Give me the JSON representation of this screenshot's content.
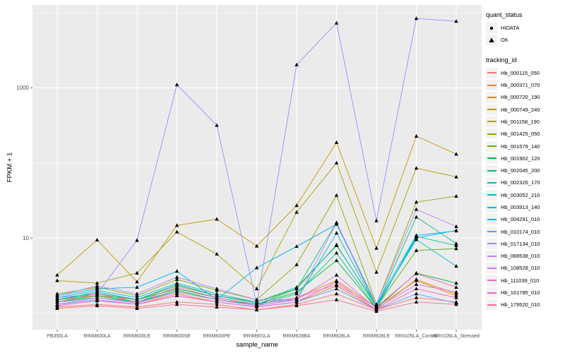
{
  "chart_data": {
    "type": "line",
    "title": "",
    "xlabel": "sample_name",
    "ylabel": "FPKM + 1",
    "y_scale": "log10",
    "y_axis_tick_labels": [
      "10",
      "1000"
    ],
    "y_major_gridlines": [
      10,
      1000
    ],
    "y_minor_gridlines": [
      1,
      100,
      10000
    ],
    "ylim": [
      0.93,
      13000
    ],
    "grid": "on",
    "panel_bg": "#EBEBEB",
    "gridline_color": "#FFFFFF",
    "tick_text_color": "#4D4D4D",
    "marker_color": "#000000",
    "legend_position": "right",
    "categories": [
      "PB350LA",
      "RRIM600LA",
      "RRIM600LE",
      "RRIM600SE",
      "RRIM600PE",
      "RRIM901LA",
      "RRIM928BA",
      "RRIM928LA",
      "RRIM928LE",
      "RRII105LA_Control",
      "RRII105LA_Stressed"
    ],
    "shape_legend": {
      "title": "quant_status",
      "items": [
        {
          "label": "HIDATA",
          "symbol": "circle"
        },
        {
          "label": "OK",
          "symbol": "triangle"
        }
      ]
    },
    "color_legend_title": "tracking_id",
    "series": [
      {
        "name": "Hb_000115_050",
        "color": "#F8766D",
        "quant_status": "OK",
        "values": [
          1.2,
          1.3,
          1.2,
          1.4,
          1.3,
          1.1,
          1.3,
          1.8,
          1.1,
          1.6,
          1.4
        ]
      },
      {
        "name": "Hb_000371_070",
        "color": "#EA8331",
        "quant_status": "OK",
        "values": [
          1.3,
          1.5,
          1.3,
          1.8,
          1.4,
          1.2,
          1.4,
          2.3,
          1.1,
          2.8,
          1.8
        ]
      },
      {
        "name": "Hb_000720_190",
        "color": "#D89000",
        "quant_status": "OK",
        "values": [
          1.5,
          1.7,
          1.5,
          2.1,
          1.6,
          1.3,
          1.6,
          2.7,
          1.2,
          2.7,
          1.7
        ]
      },
      {
        "name": "Hb_000749_240",
        "color": "#C49A00",
        "quant_status": "OK",
        "values": [
          3.2,
          9.4,
          2.6,
          14.7,
          17.8,
          7.8,
          27,
          187,
          7.3,
          227,
          131
        ]
      },
      {
        "name": "Hb_001158_190",
        "color": "#ABA300",
        "quant_status": "OK",
        "values": [
          2.7,
          2.5,
          3.4,
          12,
          6.1,
          2.1,
          22,
          100,
          3.5,
          85,
          65
        ]
      },
      {
        "name": "Hb_001425_050",
        "color": "#8CAB00",
        "quant_status": "OK",
        "values": [
          1.8,
          2.2,
          1.7,
          2.8,
          2.0,
          1.5,
          4.4,
          37,
          1.3,
          30,
          36
        ]
      },
      {
        "name": "Hb_001579_140",
        "color": "#5EB300",
        "quant_status": "OK",
        "values": [
          1.5,
          1.9,
          1.5,
          2.3,
          1.7,
          1.4,
          2.1,
          8.1,
          1.2,
          6.8,
          7.2
        ]
      },
      {
        "name": "Hb_001902_120",
        "color": "#00BA38",
        "quant_status": "OK",
        "values": [
          1.4,
          1.7,
          1.4,
          2.0,
          1.5,
          1.3,
          1.9,
          5.0,
          1.15,
          3.4,
          2.5
        ]
      },
      {
        "name": "Hb_002045_200",
        "color": "#00BF74",
        "quant_status": "OK",
        "values": [
          1.5,
          1.8,
          1.5,
          2.1,
          1.6,
          1.3,
          2.1,
          16,
          1.2,
          19,
          8.4
        ]
      },
      {
        "name": "Hb_002326_170",
        "color": "#00C19F",
        "quant_status": "OK",
        "values": [
          1.4,
          1.6,
          1.4,
          1.9,
          1.5,
          1.25,
          1.8,
          6.3,
          1.15,
          10.5,
          7.9
        ]
      },
      {
        "name": "Hb_003052_210",
        "color": "#00BFC4",
        "quant_status": "OK",
        "values": [
          1.6,
          2.0,
          1.6,
          2.5,
          1.8,
          1.4,
          2.2,
          7.9,
          1.25,
          9.5,
          4.2
        ]
      },
      {
        "name": "Hb_003913_140",
        "color": "#00BAE0",
        "quant_status": "OK",
        "values": [
          1.5,
          1.9,
          1.5,
          2.4,
          1.7,
          1.35,
          1.5,
          11.6,
          1.2,
          10,
          12.6
        ]
      },
      {
        "name": "Hb_004291_010",
        "color": "#00B0F6",
        "quant_status": "OK",
        "values": [
          1.7,
          2.1,
          2.2,
          3.6,
          1.5,
          4.0,
          7.7,
          15.2,
          1.3,
          10.8,
          12.4
        ]
      },
      {
        "name": "Hb_010174_010",
        "color": "#619CFF",
        "quant_status": "OK",
        "values": [
          1.3,
          1.5,
          1.3,
          1.7,
          1.4,
          1.2,
          1.4,
          2.1,
          1.1,
          1.8,
          1.35
        ]
      },
      {
        "name": "Hb_017134_010",
        "color": "#9590FF",
        "quant_status": "OK",
        "values": [
          1.6,
          1.8,
          9.3,
          1100,
          316,
          1.3,
          2030,
          7300,
          17,
          8400,
          7700
        ]
      },
      {
        "name": "Hb_088538_010",
        "color": "#B983FF",
        "quant_status": "OK",
        "values": [
          1.7,
          2.3,
          1.8,
          3.0,
          2.1,
          1.5,
          1.5,
          15.9,
          1.3,
          24,
          14.2
        ]
      },
      {
        "name": "Hb_108528_010",
        "color": "#E76BF3",
        "quant_status": "OK",
        "values": [
          1.3,
          1.6,
          1.35,
          1.9,
          1.5,
          1.25,
          1.5,
          3.2,
          1.15,
          2.4,
          1.9
        ]
      },
      {
        "name": "Hb_111039_010",
        "color": "#FD61D1",
        "quant_status": "OK",
        "values": [
          1.25,
          1.45,
          1.3,
          1.7,
          1.4,
          1.2,
          1.4,
          2.6,
          1.1,
          2.1,
          1.6
        ]
      },
      {
        "name": "Hb_161785_010",
        "color": "#FF62BC",
        "quant_status": "OK",
        "values": [
          1.4,
          1.8,
          1.4,
          2.2,
          1.6,
          1.3,
          1.6,
          2.4,
          1.2,
          3.35,
          2.2
        ]
      },
      {
        "name": "Hb_179520_010",
        "color": "#FF6A98",
        "quant_status": "OK",
        "values": [
          1.15,
          1.25,
          1.15,
          1.3,
          1.2,
          1.1,
          1.25,
          1.5,
          1.05,
          1.4,
          1.3
        ]
      }
    ]
  }
}
